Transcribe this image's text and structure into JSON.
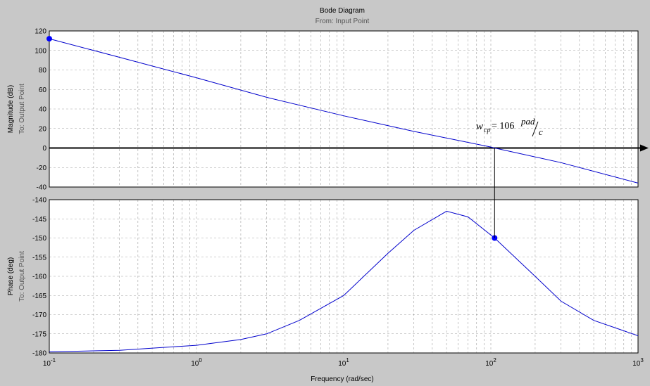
{
  "chart_data": {
    "type": "line",
    "title": "Bode Diagram",
    "subtitle": "From: Input Point",
    "xlabel": "Frequency (rad/sec)",
    "xscale": "log",
    "xlim": [
      0.1,
      1000
    ],
    "x_ticks": [
      {
        "base": "10",
        "exp": "-1"
      },
      {
        "base": "10",
        "exp": "0"
      },
      {
        "base": "10",
        "exp": "1"
      },
      {
        "base": "10",
        "exp": "2"
      },
      {
        "base": "10",
        "exp": "3"
      }
    ],
    "grid": true,
    "marker_color": "#0000ff",
    "line_color": "#0000cc",
    "background": "#c8c8c8",
    "magnitude": {
      "ylabel": "Magnitude (dB)",
      "ylabel2": "To: Output Point",
      "ylim": [
        -40,
        120
      ],
      "yticks": [
        "120",
        "100",
        "80",
        "60",
        "40",
        "20",
        "0",
        "-20",
        "-40"
      ],
      "x": [
        0.1,
        0.3,
        1,
        3,
        10,
        30,
        100,
        106,
        300,
        1000
      ],
      "y": [
        112,
        93,
        72,
        52,
        33,
        17,
        1,
        0,
        -15,
        -36
      ],
      "marker": {
        "x": 0.1,
        "y": 112
      },
      "annotation": {
        "var": "w",
        "sub": "cp",
        "eq": " = 106",
        "num": "pad",
        "den": "c",
        "x": 106,
        "y": 0
      }
    },
    "phase": {
      "ylabel": "Phase (deg)",
      "ylabel2": "To: Output Point",
      "ylim": [
        -180,
        -140
      ],
      "yticks": [
        "-140",
        "-145",
        "-150",
        "-155",
        "-160",
        "-165",
        "-170",
        "-175",
        "-180"
      ],
      "x": [
        0.1,
        0.3,
        1,
        2,
        3,
        5,
        10,
        20,
        30,
        50,
        70,
        106,
        200,
        300,
        500,
        1000
      ],
      "y": [
        -179.7,
        -179.3,
        -178,
        -176.5,
        -175,
        -171.5,
        -165,
        -154,
        -148,
        -143,
        -144.5,
        -150,
        -160,
        -166.5,
        -171.5,
        -175.5
      ],
      "marker": {
        "x": 106,
        "y": -150
      }
    }
  }
}
